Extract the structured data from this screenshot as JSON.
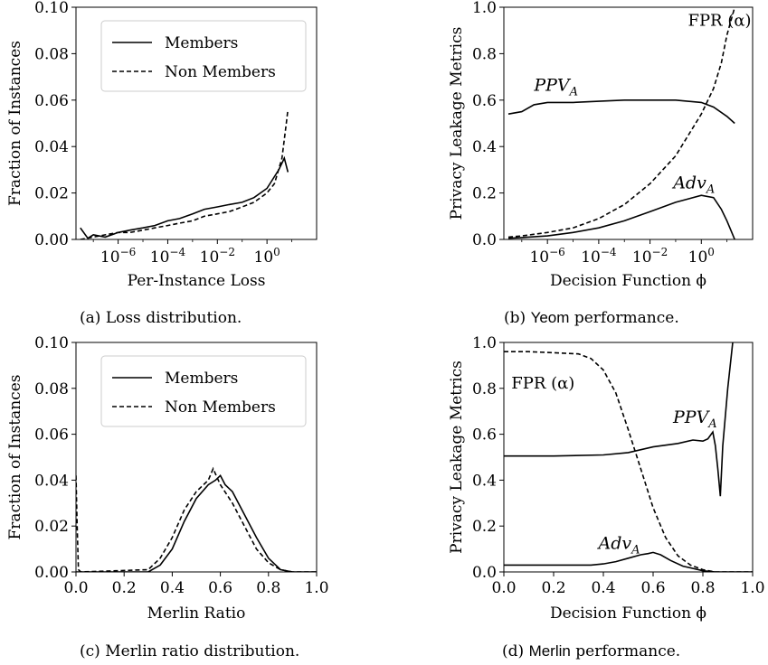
{
  "figure": {
    "panels": [
      {
        "id": "a",
        "caption_prefix": "(a) ",
        "caption_name": "",
        "caption_suffix": "Loss distribution.",
        "chart_data": {
          "type": "line",
          "xscale": "log",
          "xlim": [
            2e-08,
            100.0
          ],
          "ylim": [
            0,
            0.1
          ],
          "xlabel": "Per-Instance Loss",
          "ylabel": "Fraction of Instances",
          "xticks": [
            1e-06,
            0.0001,
            0.01,
            1
          ],
          "xtick_labels": [
            {
              "base": "10",
              "exp": "−6"
            },
            {
              "base": "10",
              "exp": "−4"
            },
            {
              "base": "10",
              "exp": "−2"
            },
            {
              "base": "10",
              "exp": "0"
            }
          ],
          "yticks": [
            0,
            0.02,
            0.04,
            0.06,
            0.08,
            0.1
          ],
          "ytick_labels": [
            "0.00",
            "0.02",
            "0.04",
            "0.06",
            "0.08",
            "0.10"
          ],
          "legend": {
            "placement": "top-right",
            "entries": [
              "Members",
              "Non Members"
            ]
          },
          "series": [
            {
              "name": "Members",
              "style": "solid",
              "x": [
                3e-08,
                6e-08,
                1e-07,
                3e-07,
                1e-06,
                3e-06,
                1e-05,
                3e-05,
                0.0001,
                0.0003,
                0.001,
                0.003,
                0.01,
                0.03,
                0.1,
                0.3,
                1,
                3,
                5,
                7
              ],
              "y": [
                0.005,
                0.0005,
                0.002,
                0.001,
                0.003,
                0.004,
                0.005,
                0.006,
                0.008,
                0.009,
                0.011,
                0.013,
                0.014,
                0.015,
                0.016,
                0.018,
                0.022,
                0.03,
                0.035,
                0.029
              ]
            },
            {
              "name": "Non Members",
              "style": "dashed",
              "x": [
                3e-08,
                1e-07,
                3e-07,
                1e-06,
                3e-06,
                1e-05,
                3e-05,
                0.0001,
                0.0003,
                0.001,
                0.003,
                0.01,
                0.03,
                0.1,
                0.3,
                1,
                2,
                4,
                6,
                7
              ],
              "y": [
                0.0,
                0.001,
                0.002,
                0.003,
                0.003,
                0.004,
                0.005,
                0.006,
                0.007,
                0.008,
                0.01,
                0.011,
                0.012,
                0.014,
                0.016,
                0.02,
                0.024,
                0.035,
                0.05,
                0.056
              ]
            }
          ]
        }
      },
      {
        "id": "b",
        "caption_prefix": "(b) ",
        "caption_name": "Yeom",
        "caption_suffix": " performance.",
        "chart_data": {
          "type": "line",
          "xscale": "log",
          "xlim": [
            2e-08,
            100.0
          ],
          "ylim": [
            0,
            1.0
          ],
          "xlabel": "Decision Function ϕ",
          "ylabel": "Privacy Leakage Metrics",
          "xticks": [
            1e-06,
            0.0001,
            0.01,
            1
          ],
          "xtick_labels": [
            {
              "base": "10",
              "exp": "−6"
            },
            {
              "base": "10",
              "exp": "−4"
            },
            {
              "base": "10",
              "exp": "−2"
            },
            {
              "base": "10",
              "exp": "0"
            }
          ],
          "yticks": [
            0,
            0.2,
            0.4,
            0.6,
            0.8,
            1.0
          ],
          "ytick_labels": [
            "0.0",
            "0.2",
            "0.4",
            "0.6",
            "0.8",
            "1.0"
          ],
          "annotations": [
            {
              "text": "PPV",
              "sub": "A",
              "x": 3e-07,
              "y": 0.64
            },
            {
              "text": "Adv",
              "sub": "A",
              "x": 0.08,
              "y": 0.22
            },
            {
              "text": "FPR (α)",
              "x": 0.3,
              "y": 0.92
            }
          ],
          "series": [
            {
              "name": "PPV_A",
              "style": "solid",
              "x": [
                3e-08,
                1e-07,
                3e-07,
                1e-06,
                1e-05,
                0.0001,
                0.001,
                0.01,
                0.1,
                1,
                3,
                10,
                20
              ],
              "y": [
                0.54,
                0.55,
                0.58,
                0.59,
                0.59,
                0.595,
                0.6,
                0.6,
                0.6,
                0.59,
                0.57,
                0.53,
                0.5
              ]
            },
            {
              "name": "FPR (α)",
              "style": "dashed",
              "x": [
                3e-08,
                1e-07,
                1e-06,
                1e-05,
                0.0001,
                0.001,
                0.01,
                0.1,
                1,
                3,
                6,
                10,
                20
              ],
              "y": [
                0.01,
                0.015,
                0.03,
                0.05,
                0.09,
                0.15,
                0.24,
                0.36,
                0.54,
                0.65,
                0.76,
                0.88,
                1.0
              ]
            },
            {
              "name": "Adv_A",
              "style": "solid",
              "x": [
                3e-08,
                1e-07,
                1e-06,
                1e-05,
                0.0001,
                0.001,
                0.01,
                0.1,
                1,
                3,
                6,
                10,
                20
              ],
              "y": [
                0.005,
                0.008,
                0.015,
                0.03,
                0.05,
                0.08,
                0.12,
                0.16,
                0.19,
                0.18,
                0.13,
                0.08,
                0.0
              ]
            }
          ]
        }
      },
      {
        "id": "c",
        "caption_prefix": "(c) ",
        "caption_name": "",
        "caption_suffix": "Merlin ratio distribution.",
        "chart_data": {
          "type": "line",
          "xscale": "linear",
          "xlim": [
            0,
            1.0
          ],
          "ylim": [
            0,
            0.1
          ],
          "xlabel": "Merlin Ratio",
          "ylabel": "Fraction of Instances",
          "xticks": [
            0,
            0.2,
            0.4,
            0.6,
            0.8,
            1.0
          ],
          "xtick_labels": [
            "0.0",
            "0.2",
            "0.4",
            "0.6",
            "0.8",
            "1.0"
          ],
          "yticks": [
            0,
            0.02,
            0.04,
            0.06,
            0.08,
            0.1
          ],
          "ytick_labels": [
            "0.00",
            "0.02",
            "0.04",
            "0.06",
            "0.08",
            "0.10"
          ],
          "legend": {
            "placement": "top-right",
            "entries": [
              "Members",
              "Non Members"
            ]
          },
          "series": [
            {
              "name": "Members",
              "style": "solid",
              "x": [
                0.0,
                0.01,
                0.02,
                0.3,
                0.35,
                0.4,
                0.45,
                0.5,
                0.55,
                0.58,
                0.6,
                0.62,
                0.65,
                0.7,
                0.75,
                0.8,
                0.85,
                0.9,
                1.0
              ],
              "y": [
                0.0,
                0.0,
                0.0,
                0.0,
                0.003,
                0.01,
                0.022,
                0.032,
                0.038,
                0.04,
                0.042,
                0.038,
                0.035,
                0.025,
                0.015,
                0.006,
                0.001,
                0.0,
                0.0
              ]
            },
            {
              "name": "Non Members",
              "style": "dashed",
              "x": [
                0.0,
                0.005,
                0.01,
                0.02,
                0.3,
                0.35,
                0.4,
                0.45,
                0.5,
                0.55,
                0.57,
                0.6,
                0.65,
                0.7,
                0.75,
                0.8,
                0.85,
                0.9,
                1.0
              ],
              "y": [
                0.042,
                0.02,
                0.001,
                0.0,
                0.001,
                0.006,
                0.015,
                0.027,
                0.035,
                0.04,
                0.045,
                0.038,
                0.03,
                0.02,
                0.01,
                0.004,
                0.001,
                0.0,
                0.0
              ]
            }
          ]
        }
      },
      {
        "id": "d",
        "caption_prefix": "(d) ",
        "caption_name": "Merlin",
        "caption_suffix": " performance.",
        "chart_data": {
          "type": "line",
          "xscale": "linear",
          "xlim": [
            0,
            1.0
          ],
          "ylim": [
            0,
            1.0
          ],
          "xlabel": "Decision Function ϕ",
          "ylabel": "Privacy Leakage Metrics",
          "xticks": [
            0,
            0.2,
            0.4,
            0.6,
            0.8,
            1.0
          ],
          "xtick_labels": [
            "0.0",
            "0.2",
            "0.4",
            "0.6",
            "0.8",
            "1.0"
          ],
          "yticks": [
            0,
            0.2,
            0.4,
            0.6,
            0.8,
            1.0
          ],
          "ytick_labels": [
            "0.0",
            "0.2",
            "0.4",
            "0.6",
            "0.8",
            "1.0"
          ],
          "annotations": [
            {
              "text": "FPR (α)",
              "x": 0.03,
              "y": 0.8
            },
            {
              "text": "PPV",
              "sub": "A",
              "x": 0.68,
              "y": 0.65
            },
            {
              "text": "Adv",
              "sub": "A",
              "x": 0.38,
              "y": 0.1
            }
          ],
          "series": [
            {
              "name": "FPR (α)",
              "style": "dashed",
              "x": [
                0.0,
                0.1,
                0.2,
                0.3,
                0.35,
                0.4,
                0.45,
                0.5,
                0.55,
                0.6,
                0.65,
                0.7,
                0.75,
                0.8,
                0.85,
                1.0
              ],
              "y": [
                0.96,
                0.96,
                0.955,
                0.95,
                0.93,
                0.88,
                0.78,
                0.62,
                0.45,
                0.28,
                0.15,
                0.07,
                0.03,
                0.01,
                0.0,
                0.0
              ]
            },
            {
              "name": "PPV_A",
              "style": "solid",
              "x": [
                0.0,
                0.2,
                0.4,
                0.5,
                0.6,
                0.7,
                0.76,
                0.8,
                0.82,
                0.84,
                0.85,
                0.86,
                0.87,
                0.88,
                0.9,
                0.92
              ],
              "y": [
                0.505,
                0.505,
                0.51,
                0.52,
                0.545,
                0.56,
                0.575,
                0.57,
                0.58,
                0.61,
                0.55,
                0.45,
                0.33,
                0.55,
                0.8,
                1.0
              ]
            },
            {
              "name": "Adv_A",
              "style": "solid",
              "x": [
                0.0,
                0.2,
                0.35,
                0.4,
                0.45,
                0.5,
                0.55,
                0.58,
                0.6,
                0.63,
                0.67,
                0.72,
                0.8,
                0.85,
                1.0
              ],
              "y": [
                0.03,
                0.03,
                0.03,
                0.035,
                0.045,
                0.06,
                0.075,
                0.08,
                0.085,
                0.075,
                0.05,
                0.025,
                0.005,
                0.0,
                0.0
              ]
            }
          ]
        }
      }
    ]
  }
}
